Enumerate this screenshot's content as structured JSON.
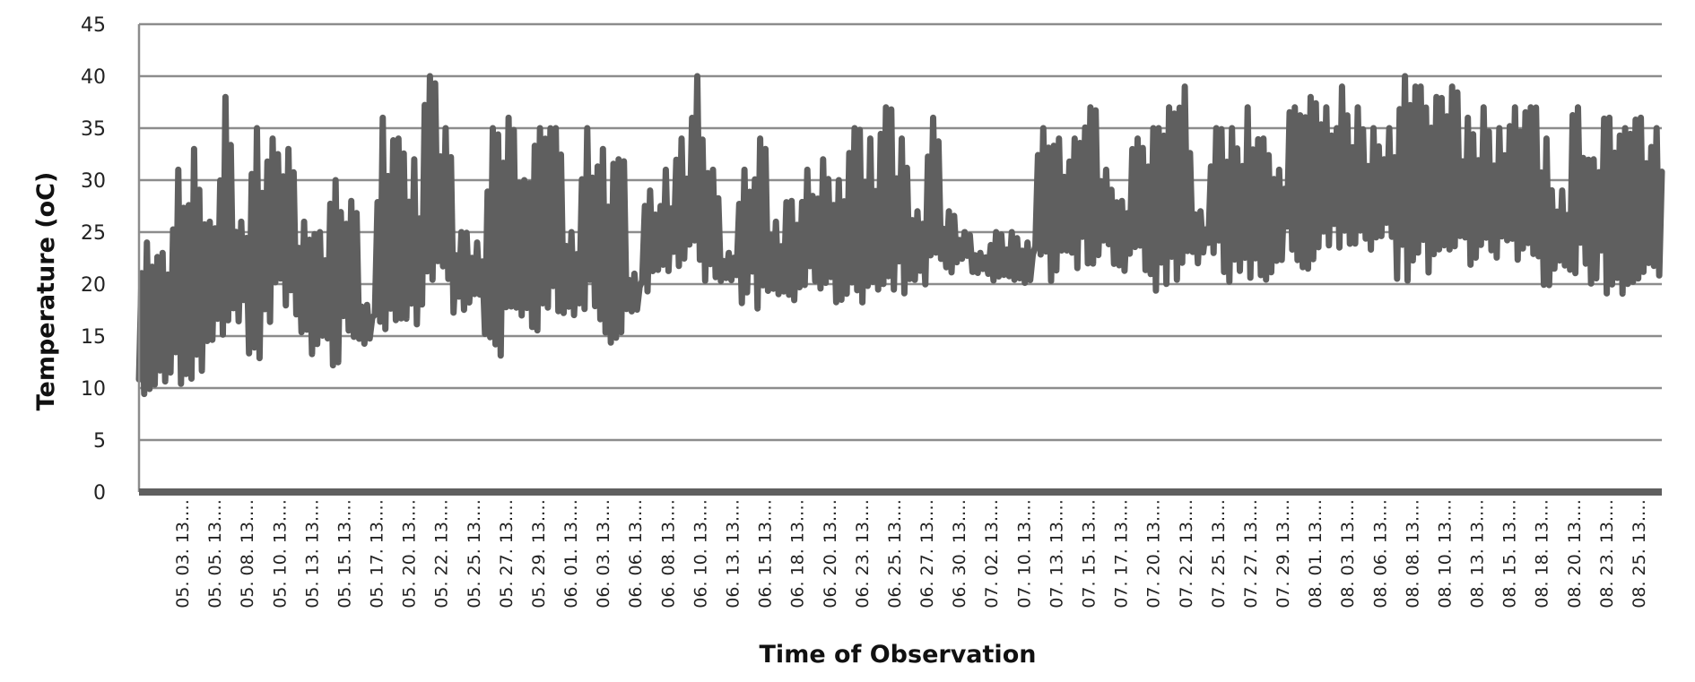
{
  "chart_data": {
    "type": "line",
    "title": "",
    "xlabel": "Time of Observation",
    "ylabel": "Temperature (oC)",
    "ylim": [
      0,
      45
    ],
    "yticks": [
      0,
      5,
      10,
      15,
      20,
      25,
      30,
      35,
      40,
      45
    ],
    "grid": "horizontal",
    "legend": "none",
    "colors": {
      "line": "#5f5f5f",
      "grid": "#8c8c8c",
      "axis": "#8c8c8c"
    },
    "x_tick_labels": [
      "05. 03. 13.…",
      "05. 05. 13.…",
      "05. 08. 13.…",
      "05. 10. 13.…",
      "05. 13. 13.…",
      "05. 15. 13.…",
      "05. 17. 13.…",
      "05. 20. 13.…",
      "05. 22. 13.…",
      "05. 25. 13.…",
      "05. 27. 13.…",
      "05. 29. 13.…",
      "06. 01. 13.…",
      "06. 03. 13.…",
      "06. 06. 13.…",
      "06. 08. 13.…",
      "06. 10. 13.…",
      "06. 13. 13.…",
      "06. 15. 13.…",
      "06. 18. 13.…",
      "06. 20. 13.…",
      "06. 23. 13.…",
      "06. 25. 13.…",
      "06. 27. 13.…",
      "06. 30. 13.…",
      "07. 02. 13.…",
      "07. 10. 13.…",
      "07. 13. 13.…",
      "07. 15. 13.…",
      "07. 17. 13.…",
      "07. 20. 13.…",
      "07. 22. 13.…",
      "07. 25. 13.…",
      "07. 27. 13.…",
      "07. 29. 13.…",
      "08. 01. 13.…",
      "08. 03. 13.…",
      "08. 06. 13.…",
      "08. 08. 13.…",
      "08. 10. 13.…",
      "08. 13. 13.…",
      "08. 15. 13.…",
      "08. 18. 13.…",
      "08. 20. 13.…",
      "08. 23. 13.…",
      "08. 25. 13.…"
    ],
    "series": [
      {
        "values": [
          {
            "min": 9,
            "max": 24
          },
          {
            "min": 8.5,
            "max": 23
          },
          {
            "min": 10,
            "max": 31
          },
          {
            "min": 10,
            "max": 33
          },
          {
            "min": 11,
            "max": 26
          },
          {
            "min": 14,
            "max": 38
          },
          {
            "min": 16,
            "max": 26
          },
          {
            "min": 12,
            "max": 35
          },
          {
            "min": 16,
            "max": 34
          },
          {
            "min": 17,
            "max": 33
          },
          {
            "min": 15,
            "max": 26
          },
          {
            "min": 13,
            "max": 25
          },
          {
            "min": 10,
            "max": 30
          },
          {
            "min": 14,
            "max": 28
          },
          {
            "min": 14,
            "max": 18
          },
          {
            "min": 11,
            "max": 36
          },
          {
            "min": 15,
            "max": 34
          },
          {
            "min": 15,
            "max": 32
          },
          {
            "min": 18,
            "max": 40
          },
          {
            "min": 18,
            "max": 35
          },
          {
            "min": 17,
            "max": 25
          },
          {
            "min": 18,
            "max": 24
          },
          {
            "min": 14,
            "max": 35
          },
          {
            "min": 13,
            "max": 36
          },
          {
            "min": 16,
            "max": 30
          },
          {
            "min": 14,
            "max": 35
          },
          {
            "min": 17,
            "max": 35
          },
          {
            "min": 17,
            "max": 25
          },
          {
            "min": 16,
            "max": 35
          },
          {
            "min": 15,
            "max": 33
          },
          {
            "min": 14,
            "max": 32
          },
          {
            "min": 17,
            "max": 21
          },
          {
            "min": 19,
            "max": 29
          },
          {
            "min": 20,
            "max": 31
          },
          {
            "min": 20,
            "max": 34
          },
          {
            "min": 19,
            "max": 40
          },
          {
            "min": 19,
            "max": 31
          },
          {
            "min": 20,
            "max": 23
          },
          {
            "min": 18,
            "max": 31
          },
          {
            "min": 17,
            "max": 34
          },
          {
            "min": 19,
            "max": 26
          },
          {
            "min": 18,
            "max": 28
          },
          {
            "min": 19,
            "max": 31
          },
          {
            "min": 19,
            "max": 32
          },
          {
            "min": 18,
            "max": 30
          },
          {
            "min": 18,
            "max": 35
          },
          {
            "min": 18,
            "max": 34
          },
          {
            "min": 19,
            "max": 37
          },
          {
            "min": 19,
            "max": 34
          },
          {
            "min": 20,
            "max": 27
          },
          {
            "min": 19,
            "max": 36
          },
          {
            "min": 21,
            "max": 27
          },
          {
            "min": 22,
            "max": 25
          },
          {
            "min": 21,
            "max": 23
          },
          {
            "min": 20,
            "max": 25
          },
          {
            "min": 20,
            "max": 25
          },
          {
            "min": 20,
            "max": 24
          },
          {
            "min": 21,
            "max": 35
          },
          {
            "min": 20,
            "max": 34
          },
          {
            "min": 20,
            "max": 34
          },
          {
            "min": 21,
            "max": 37
          },
          {
            "min": 22,
            "max": 31
          },
          {
            "min": 21,
            "max": 28
          },
          {
            "min": 22,
            "max": 34
          },
          {
            "min": 19,
            "max": 35
          },
          {
            "min": 20,
            "max": 37
          },
          {
            "min": 20,
            "max": 39
          },
          {
            "min": 22,
            "max": 27
          },
          {
            "min": 21,
            "max": 35
          },
          {
            "min": 20,
            "max": 35
          },
          {
            "min": 20,
            "max": 37
          },
          {
            "min": 20,
            "max": 34
          },
          {
            "min": 21,
            "max": 31
          },
          {
            "min": 22,
            "max": 37
          },
          {
            "min": 21,
            "max": 38
          },
          {
            "min": 22,
            "max": 37
          },
          {
            "min": 22,
            "max": 39
          },
          {
            "min": 23,
            "max": 37
          },
          {
            "min": 23,
            "max": 35
          },
          {
            "min": 24,
            "max": 35
          },
          {
            "min": 20,
            "max": 40
          },
          {
            "min": 21,
            "max": 39
          },
          {
            "min": 21,
            "max": 38
          },
          {
            "min": 20,
            "max": 39
          },
          {
            "min": 21,
            "max": 36
          },
          {
            "min": 21,
            "max": 37
          },
          {
            "min": 22,
            "max": 35
          },
          {
            "min": 22,
            "max": 37
          },
          {
            "min": 22,
            "max": 37
          },
          {
            "min": 19,
            "max": 34
          },
          {
            "min": 21,
            "max": 29
          },
          {
            "min": 21,
            "max": 37
          },
          {
            "min": 20,
            "max": 32
          },
          {
            "min": 19,
            "max": 36
          },
          {
            "min": 18,
            "max": 35
          },
          {
            "min": 18,
            "max": 36
          },
          {
            "min": 18,
            "max": 35
          }
        ]
      }
    ]
  }
}
